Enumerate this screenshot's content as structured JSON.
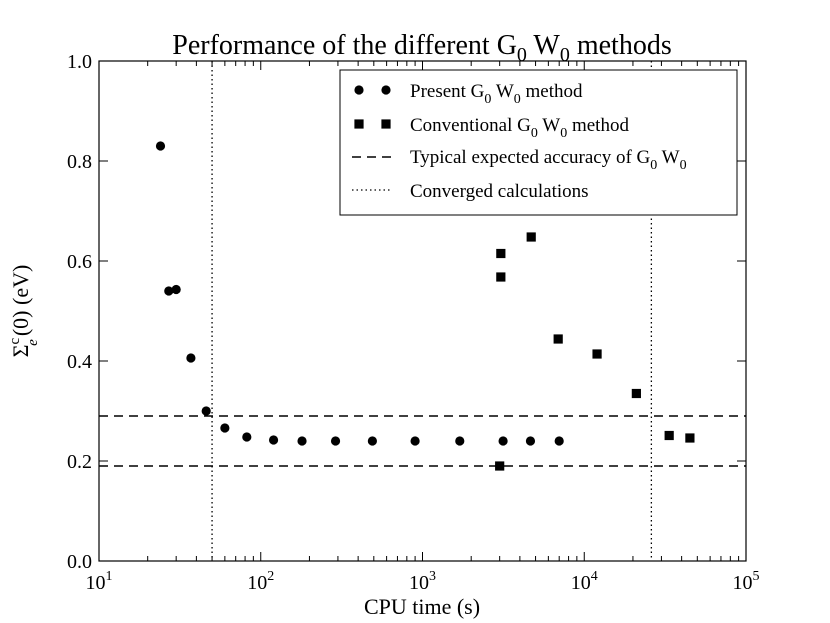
{
  "chart_data": {
    "type": "scatter",
    "title": {
      "text": "Performance of the different G",
      "sub1": "0",
      "mid": " W",
      "sub2": "0",
      "tail": "  methods"
    },
    "xlabel": "CPU time (s)",
    "ylabel": {
      "base": "Σ",
      "sup": "c",
      "sub": "e",
      "tail": "(0) (eV)"
    },
    "xscale": "log",
    "xlim": [
      10,
      100000
    ],
    "ylim": [
      0.0,
      1.0
    ],
    "x_ticks": [
      {
        "value": 10,
        "base": "10",
        "exp": "1"
      },
      {
        "value": 100,
        "base": "10",
        "exp": "2"
      },
      {
        "value": 1000,
        "base": "10",
        "exp": "3"
      },
      {
        "value": 10000,
        "base": "10",
        "exp": "4"
      },
      {
        "value": 100000,
        "base": "10",
        "exp": "5"
      }
    ],
    "y_ticks": [
      {
        "value": 0.0,
        "label": "0.0"
      },
      {
        "value": 0.2,
        "label": "0.2"
      },
      {
        "value": 0.4,
        "label": "0.4"
      },
      {
        "value": 0.6,
        "label": "0.6"
      },
      {
        "value": 0.8,
        "label": "0.8"
      },
      {
        "value": 1.0,
        "label": "1.0"
      }
    ],
    "series": [
      {
        "name": "Present G0W0 method",
        "marker": "circle",
        "points": [
          [
            24,
            0.83
          ],
          [
            27,
            0.54
          ],
          [
            30,
            0.543
          ],
          [
            37,
            0.406
          ],
          [
            46,
            0.3
          ],
          [
            60,
            0.266
          ],
          [
            82,
            0.248
          ],
          [
            120,
            0.242
          ],
          [
            180,
            0.24
          ],
          [
            290,
            0.24
          ],
          [
            490,
            0.24
          ],
          [
            900,
            0.24
          ],
          [
            1700,
            0.24
          ],
          [
            3150,
            0.24
          ],
          [
            4650,
            0.24
          ],
          [
            7000,
            0.24
          ]
        ]
      },
      {
        "name": "Conventional G0W0 method",
        "marker": "square",
        "points": [
          [
            3000,
            0.19
          ],
          [
            3050,
            0.615
          ],
          [
            3050,
            0.568
          ],
          [
            4700,
            0.648
          ],
          [
            6900,
            0.444
          ],
          [
            12000,
            0.414
          ],
          [
            21000,
            0.335
          ],
          [
            33500,
            0.251
          ],
          [
            45000,
            0.246
          ]
        ]
      }
    ],
    "hlines": [
      {
        "name": "Typical expected accuracy of G0W0",
        "y": 0.29,
        "style": "dashed"
      },
      {
        "name": "Typical expected accuracy of G0W0",
        "y": 0.19,
        "style": "dashed"
      }
    ],
    "vlines": [
      {
        "name": "Converged calculations",
        "x": 50,
        "style": "dotted"
      },
      {
        "name": "Converged calculations",
        "x": 26000,
        "style": "dotted"
      }
    ],
    "legend": {
      "position": "top-right",
      "entries": [
        {
          "marker": "circle",
          "text": "Present G",
          "sub1": "0",
          "mid": " W",
          "sub2": "0",
          "tail": "  method"
        },
        {
          "marker": "square",
          "text": "Conventional G",
          "sub1": "0",
          "mid": " W",
          "sub2": "0",
          "tail": "  method"
        },
        {
          "marker": "dashed",
          "text": "Typical expected accuracy of G",
          "sub1": "0",
          "mid": " W",
          "sub2": "0",
          "tail": ""
        },
        {
          "marker": "dotted",
          "text": "Converged calculations",
          "sub1": "",
          "mid": "",
          "sub2": "",
          "tail": ""
        }
      ]
    }
  }
}
